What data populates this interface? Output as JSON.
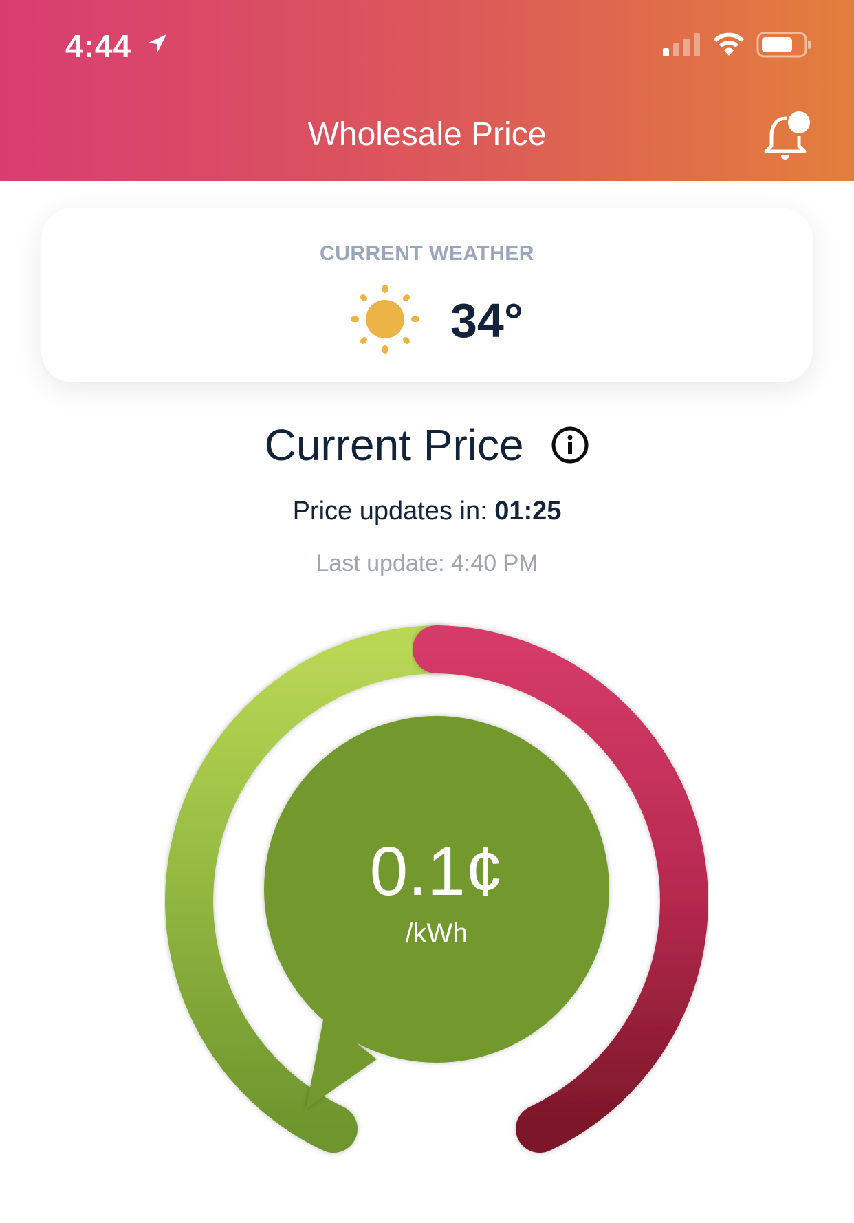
{
  "status_bar": {
    "time": "4:44",
    "icons": [
      "location-arrow-icon",
      "cellular-signal-icon",
      "wifi-icon",
      "battery-icon"
    ]
  },
  "header": {
    "title": "Wholesale Price",
    "notification_icon": "bell-icon"
  },
  "weather": {
    "label": "CURRENT WEATHER",
    "icon": "sun-icon",
    "temperature": "34°"
  },
  "price_section": {
    "title": "Current Price",
    "info_icon": "info-icon",
    "updates_label": "Price updates in:",
    "countdown": "01:25",
    "last_update_label": "Last update:",
    "last_update_time": "4:40 PM"
  },
  "gauge": {
    "price": "0.1¢",
    "unit": "/kWh",
    "colors": {
      "low": "#b8d854",
      "low_end": "#6e952d",
      "high": "#d53a69",
      "high_end": "#7c1729",
      "bubble": "#72982f",
      "header_start": "#d83d71",
      "header_end": "#e37f3c"
    }
  }
}
